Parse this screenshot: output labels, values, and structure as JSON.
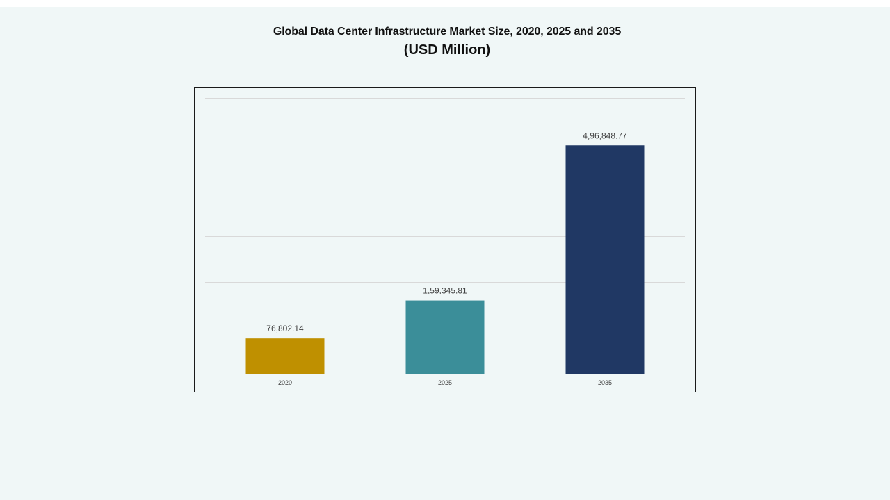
{
  "page": {
    "title": "Global Data Center Infrastructure  Market Size, 2020, 2025 and 2035",
    "subtitle": "(USD Million)"
  },
  "chart_data": {
    "type": "bar",
    "title": "Global Data Center Infrastructure  Market Size, 2020, 2025 and 2035",
    "subtitle": "(USD Million)",
    "categories": [
      "2020",
      "2025",
      "2035"
    ],
    "values": [
      76802.14,
      159345.81,
      496848.77
    ],
    "value_labels": [
      "76,802.14",
      "1,59,345.81",
      "4,96,848.77"
    ],
    "colors": [
      "#bf9000",
      "#3b8e99",
      "#203864"
    ],
    "xlabel": "",
    "ylabel": "",
    "ylim": [
      0,
      600000
    ],
    "y_ticks_shown": false,
    "grid": true,
    "legend": "none"
  }
}
